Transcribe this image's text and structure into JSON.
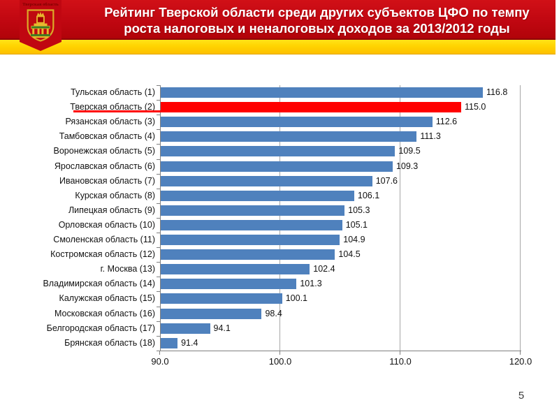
{
  "header": {
    "title_line1": "Рейтинг Тверской области среди других субъектов ЦФО по темпу",
    "title_line2": "роста налоговых  и неналоговых доходов за 2013/2012 годы",
    "emblem_label": "Тверская область",
    "colors": {
      "band_red": "#C00711",
      "stripe_gold": "#FFD400"
    }
  },
  "chart_data": {
    "type": "bar",
    "orientation": "horizontal",
    "title": "",
    "xlabel": "",
    "ylabel": "",
    "categories": [
      "Тульская область (1)",
      "Тверская область (2)",
      "Рязанская область (3)",
      "Тамбовская область (4)",
      "Воронежская область (5)",
      "Ярославская область (6)",
      "Ивановская область (7)",
      "Курская область (8)",
      "Липецкая область (9)",
      "Орловская область (10)",
      "Смоленская область (11)",
      "Костромская область (12)",
      "г. Москва (13)",
      "Владимирская область (14)",
      "Калужская область (15)",
      "Московская область (16)",
      "Белгородская область (17)",
      "Брянская область (18)"
    ],
    "values": [
      116.8,
      115.0,
      112.6,
      111.3,
      109.5,
      109.3,
      107.6,
      106.1,
      105.3,
      105.1,
      104.9,
      104.5,
      102.4,
      101.3,
      100.1,
      98.4,
      94.1,
      91.4
    ],
    "highlight_index": 1,
    "bar_color": "#4F81BD",
    "highlight_color": "#FF0000",
    "xlim": [
      90,
      120
    ],
    "xticks": [
      "90.0",
      "100.0",
      "110.0",
      "120.0"
    ],
    "xtick_values": [
      90,
      100,
      110,
      120
    ],
    "grid": true,
    "gridline_color": "#a6a6a6",
    "axis_color": "#808080",
    "value_labels_shown": true,
    "legend": "none"
  },
  "footer": {
    "page_number": "5"
  }
}
